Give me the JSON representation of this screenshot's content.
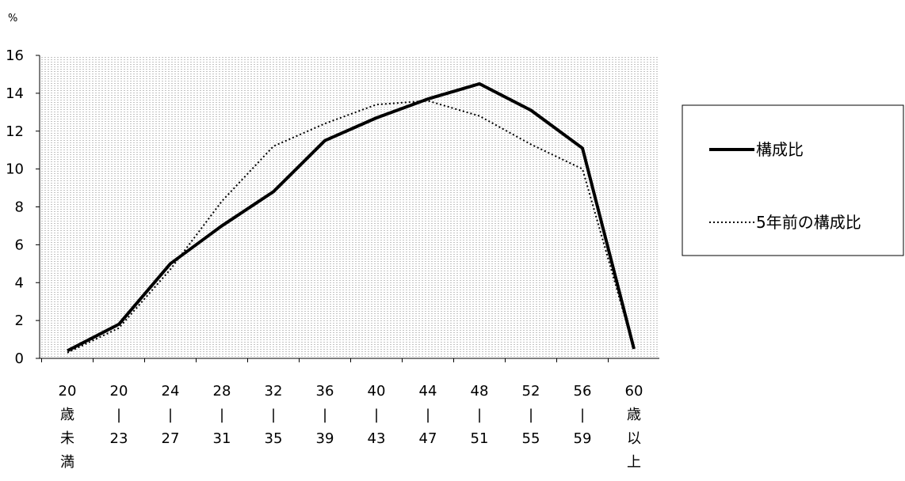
{
  "chart_data": {
    "type": "line",
    "unit_label": "%",
    "ylim": [
      0,
      16
    ],
    "yticks": [
      0,
      2,
      4,
      6,
      8,
      10,
      12,
      14,
      16
    ],
    "grid": true,
    "legend_position": "right",
    "categories": [
      [
        "20",
        "歳",
        "未",
        "満"
      ],
      [
        "20",
        "|",
        "23"
      ],
      [
        "24",
        "|",
        "27"
      ],
      [
        "28",
        "|",
        "31"
      ],
      [
        "32",
        "|",
        "35"
      ],
      [
        "36",
        "|",
        "39"
      ],
      [
        "40",
        "|",
        "43"
      ],
      [
        "44",
        "|",
        "47"
      ],
      [
        "48",
        "|",
        "51"
      ],
      [
        "52",
        "|",
        "55"
      ],
      [
        "56",
        "|",
        "59"
      ],
      [
        "60",
        "歳",
        "以",
        "上"
      ]
    ],
    "series": [
      {
        "name": "構成比",
        "style": "solid",
        "color": "#000000",
        "values": [
          0.4,
          1.8,
          5.0,
          7.0,
          8.8,
          11.5,
          12.7,
          13.7,
          14.5,
          13.1,
          11.1,
          0.5
        ]
      },
      {
        "name": "5年前の構成比",
        "style": "dotted",
        "color": "#000000",
        "values": [
          0.3,
          1.6,
          4.7,
          8.3,
          11.2,
          12.4,
          13.4,
          13.6,
          12.8,
          11.3,
          10.0,
          0.5
        ]
      }
    ]
  }
}
